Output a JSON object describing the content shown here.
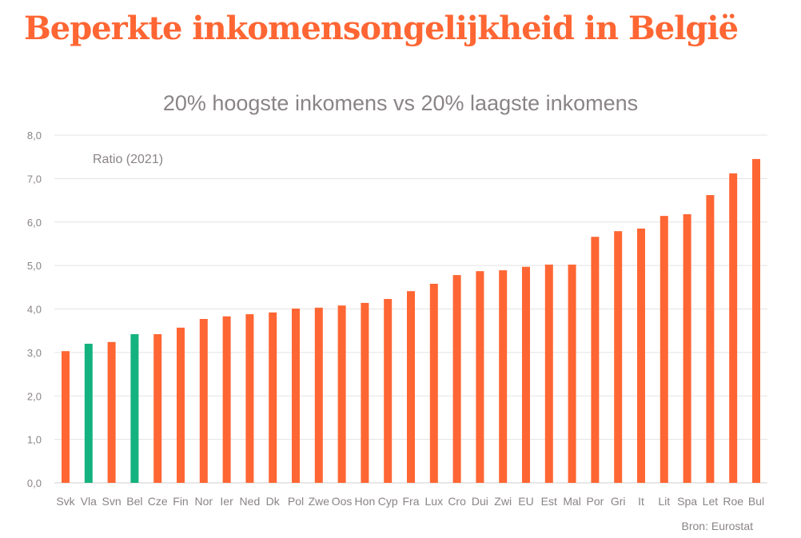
{
  "title": "Beperkte inkomensongelijkheid in België",
  "source": "Bron: Eurostat",
  "colors": {
    "default": "#ff6633",
    "highlight": "#14b27e",
    "title": "#ff6633"
  },
  "chart_data": {
    "type": "bar",
    "title": "20% hoogste inkomens vs 20% laagste inkomens",
    "annotation": "Ratio (2021)",
    "xlabel": "",
    "ylabel": "",
    "ylim": [
      0,
      8
    ],
    "yticks": [
      "0,0",
      "1,0",
      "2,0",
      "3,0",
      "4,0",
      "5,0",
      "6,0",
      "7,0",
      "8,0"
    ],
    "grid": true,
    "categories": [
      "Svk",
      "Vla",
      "Svn",
      "Bel",
      "Cze",
      "Fin",
      "Nor",
      "Ier",
      "Ned",
      "Dk",
      "Pol",
      "Zwe",
      "Oos",
      "Hon",
      "Cyp",
      "Fra",
      "Lux",
      "Cro",
      "Dui",
      "Zwi",
      "EU",
      "Est",
      "Mal",
      "Por",
      "Gri",
      "It",
      "Lit",
      "Spa",
      "Let",
      "Roe",
      "Bul"
    ],
    "values": [
      3.03,
      3.2,
      3.24,
      3.42,
      3.42,
      3.57,
      3.77,
      3.83,
      3.88,
      3.92,
      4.01,
      4.03,
      4.08,
      4.14,
      4.23,
      4.41,
      4.58,
      4.78,
      4.87,
      4.89,
      4.97,
      5.02,
      5.02,
      5.66,
      5.79,
      5.85,
      6.14,
      6.18,
      6.62,
      7.12,
      7.45
    ],
    "highlighted": [
      "Vla",
      "Bel"
    ]
  }
}
